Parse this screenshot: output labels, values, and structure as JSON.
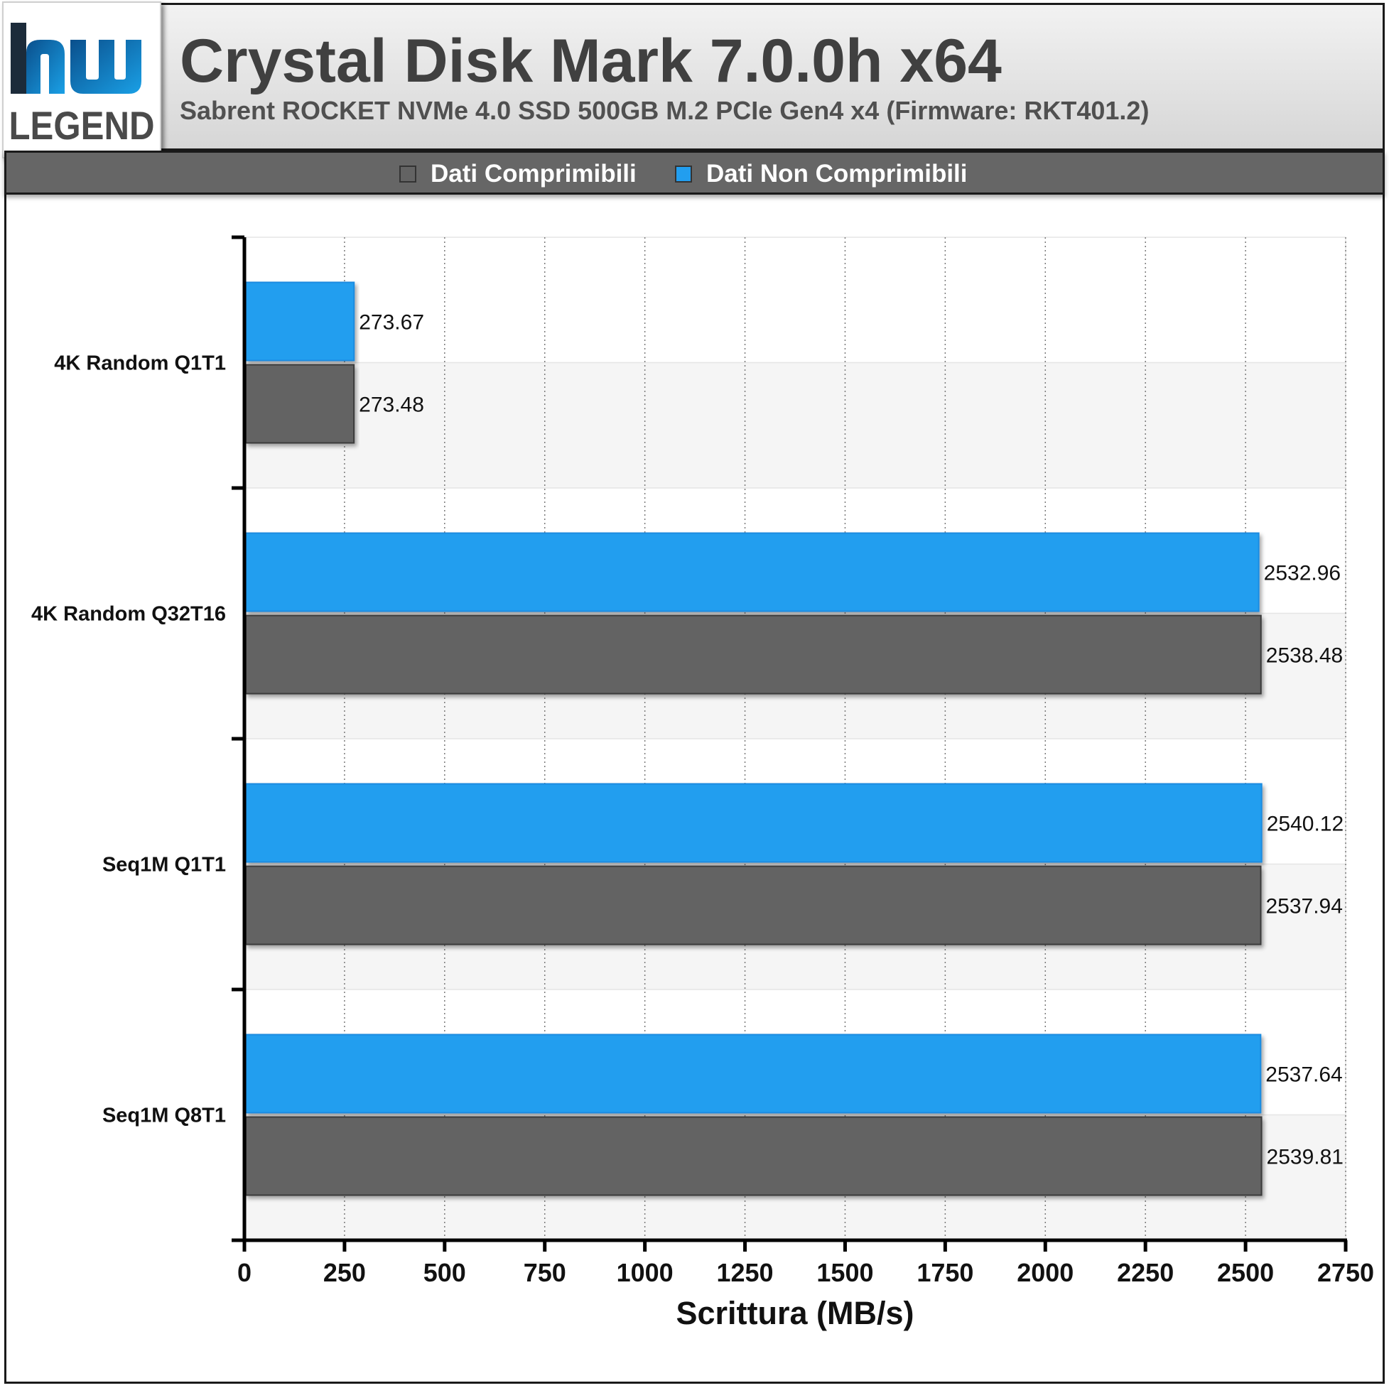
{
  "header": {
    "title": "Crystal Disk Mark 7.0.0h x64",
    "subtitle": "Sabrent ROCKET NVMe 4.0 SSD 500GB M.2 PCIe Gen4 x4 (Firmware: RKT401.2)"
  },
  "logo": {
    "text": "LEGEND",
    "icon": "hwlegend-logo-icon"
  },
  "legend": {
    "items": [
      {
        "label": "Dati Comprimibili",
        "color": "#636363"
      },
      {
        "label": "Dati Non Comprimibili",
        "color": "#229eef"
      }
    ]
  },
  "chart_data": {
    "type": "bar",
    "orientation": "horizontal",
    "categories": [
      "4K Random Q1T1",
      "4K Random Q32T16",
      "Seq1M Q1T1",
      "Seq1M Q8T1"
    ],
    "series": [
      {
        "name": "Dati Non Comprimibili",
        "color": "#229eef",
        "values": [
          273.67,
          2532.96,
          2540.12,
          2537.64
        ],
        "labels": [
          "273.67",
          "2532.96",
          "2540.12",
          "2537.64"
        ]
      },
      {
        "name": "Dati Comprimibili",
        "color": "#636363",
        "values": [
          273.48,
          2538.48,
          2537.94,
          2539.81
        ],
        "labels": [
          "273.48",
          "2538.48",
          "2537.94",
          "2539.81"
        ]
      }
    ],
    "xlabel": "Scrittura (MB/s)",
    "xlim": [
      0,
      2750
    ],
    "xticks": [
      0,
      250,
      500,
      750,
      1000,
      1250,
      1500,
      1750,
      2000,
      2250,
      2500,
      2750
    ],
    "grid": true,
    "legend_position": "top"
  }
}
